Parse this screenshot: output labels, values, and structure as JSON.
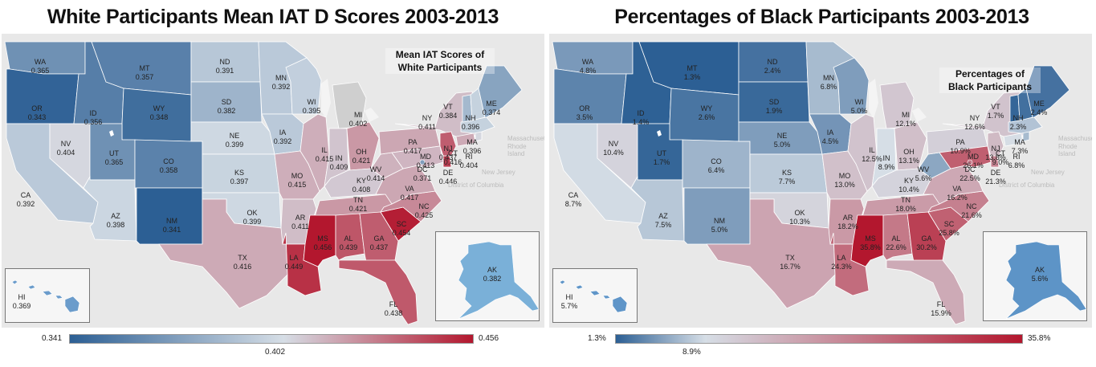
{
  "left": {
    "title": "White Participants Mean IAT D Scores 2003-2013",
    "caption_line1": "Mean IAT Scores of",
    "caption_line2": "White Participants",
    "legend_min": "0.341",
    "legend_mid": "0.402",
    "legend_max": "0.456",
    "states": {
      "WA": "0.365",
      "OR": "0.343",
      "CA": "0.392",
      "NV": "0.404",
      "ID": "0.356",
      "MT": "0.357",
      "WY": "0.348",
      "UT": "0.365",
      "CO": "0.358",
      "AZ": "0.398",
      "NM": "0.341",
      "ND": "0.391",
      "SD": "0.382",
      "NE": "0.399",
      "KS": "0.397",
      "OK": "0.399",
      "TX": "0.416",
      "MN": "0.392",
      "IA": "0.392",
      "MO": "0.415",
      "AR": "0.411",
      "LA": "0.449",
      "WI": "0.395",
      "IL": "0.415",
      "MI": "0.402",
      "IN": "0.409",
      "OH": "0.421",
      "KY": "0.408",
      "TN": "0.421",
      "MS": "0.456",
      "AL": "0.439",
      "GA": "0.437",
      "FL": "0.438",
      "SC": "0.454",
      "NC": "0.425",
      "VA": "0.417",
      "WV": "0.414",
      "PA": "0.417",
      "NY": "0.411",
      "MD": "0.413",
      "DC": "0.371",
      "DE": "0.446",
      "NJ": "0.437",
      "CT": "0.416",
      "RI": "0.404",
      "MA": "0.396",
      "NH": "0.396",
      "VT": "0.384",
      "ME": "0.374",
      "AK": "0.382",
      "HI": "0.369"
    }
  },
  "right": {
    "title": "Percentages of Black Participants 2003-2013",
    "caption_line1": "Percentages of",
    "caption_line2": "Black Participants",
    "legend_min": "1.3%",
    "legend_mid": "8.9%",
    "legend_max": "35.8%",
    "states": {
      "WA": "4.8%",
      "OR": "3.5%",
      "CA": "8.7%",
      "NV": "10.4%",
      "ID": "1.4%",
      "MT": "1.3%",
      "WY": "2.6%",
      "UT": "1.7%",
      "CO": "6.4%",
      "AZ": "7.5%",
      "NM": "5.0%",
      "ND": "2.4%",
      "SD": "1.9%",
      "NE": "5.0%",
      "KS": "7.7%",
      "OK": "10.3%",
      "TX": "16.7%",
      "MN": "6.8%",
      "IA": "4.5%",
      "MO": "13.0%",
      "AR": "18.2%",
      "LA": "24.3%",
      "WI": "5.0%",
      "IL": "12.5%",
      "MI": "12.1%",
      "IN": "8.9%",
      "OH": "13.1%",
      "KY": "10.4%",
      "TN": "18.0%",
      "MS": "35.8%",
      "AL": "22.6%",
      "GA": "30.2%",
      "FL": "15.9%",
      "SC": "25.8%",
      "NC": "21.6%",
      "VA": "16.2%",
      "WV": "5.6%",
      "PA": "10.9%",
      "NY": "12.6%",
      "MD": "26.1%",
      "DC": "22.5%",
      "DE": "21.3%",
      "NJ": "13.8%",
      "CT": "9.0%",
      "RI": "6.8%",
      "MA": "7.3%",
      "NH": "2.3%",
      "VT": "1.7%",
      "ME": "2.4%",
      "AK": "5.6%",
      "HI": "5.7%"
    }
  },
  "geo_labels": {
    "massachusetts": "Massachusetts",
    "rhode_island": "Rhode Island",
    "new_jersey": "New Jersey",
    "dc_name": "District of Columbia"
  },
  "colors": {
    "low": "#2c5f94",
    "mid": "#d6dee6",
    "high": "#b3172e",
    "background": "#e8e8e8",
    "nodata": "#cfcfcf"
  }
}
